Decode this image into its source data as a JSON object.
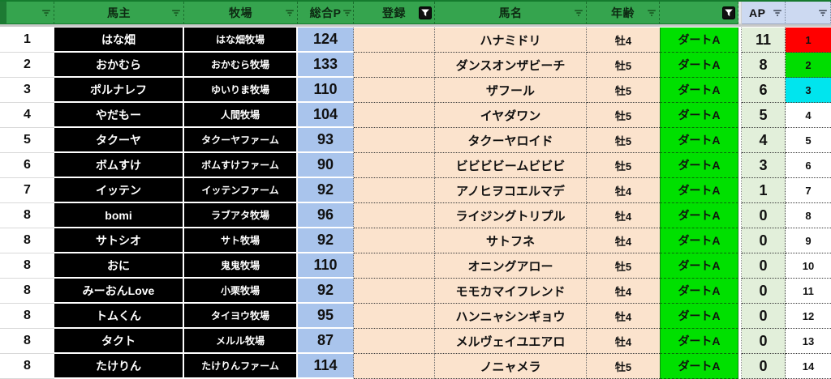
{
  "colors": {
    "header_green": "#35a44e",
    "header_blue": "#ccd9f1",
    "cell_black": "#000000",
    "cell_blue": "#a9c4ec",
    "cell_peach": "#fbe3cd",
    "cell_bright_green": "#00e000",
    "cell_ap_green": "#e2efda",
    "rank1_red": "#ff0000",
    "rank2_green": "#00dd00",
    "rank3_cyan": "#00e5ee"
  },
  "table": {
    "columns": [
      {
        "key": "rownum",
        "label": "",
        "filter": "dropdown",
        "style": "green"
      },
      {
        "key": "owner",
        "label": "馬主",
        "filter": "dropdown",
        "style": "green"
      },
      {
        "key": "farm",
        "label": "牧場",
        "filter": "dropdown",
        "style": "green"
      },
      {
        "key": "totalp",
        "label": "総合P",
        "filter": "dropdown",
        "style": "green"
      },
      {
        "key": "entry",
        "label": "登録",
        "filter": "funnel",
        "style": "green"
      },
      {
        "key": "horse",
        "label": "馬名",
        "filter": "dropdown",
        "style": "green"
      },
      {
        "key": "age",
        "label": "年齢",
        "filter": "dropdown",
        "style": "green"
      },
      {
        "key": "class",
        "label": "",
        "filter": "funnel",
        "style": "green"
      },
      {
        "key": "gap",
        "label": "",
        "filter": null,
        "style": "gap"
      },
      {
        "key": "ap",
        "label": "AP",
        "filter": "dropdown",
        "style": "blue"
      },
      {
        "key": "rank",
        "label": "",
        "filter": "dropdown",
        "style": "blue"
      }
    ],
    "rows": [
      {
        "no": "1",
        "owner": "はな畑",
        "farm": "はな畑牧場",
        "totalp": "124",
        "entry": "",
        "horse": "ハナミドリ",
        "age": "牡4",
        "class": "ダートA",
        "ap": "11",
        "rank": "1",
        "rank_bg": "#ff0000"
      },
      {
        "no": "2",
        "owner": "おかむら",
        "farm": "おかむら牧場",
        "totalp": "133",
        "entry": "",
        "horse": "ダンスオンザビーチ",
        "age": "牡5",
        "class": "ダートA",
        "ap": "8",
        "rank": "2",
        "rank_bg": "#00dd00"
      },
      {
        "no": "3",
        "owner": "ポルナレフ",
        "farm": "ゆいりま牧場",
        "totalp": "110",
        "entry": "",
        "horse": "ザフール",
        "age": "牡5",
        "class": "ダートA",
        "ap": "6",
        "rank": "3",
        "rank_bg": "#00e5ee"
      },
      {
        "no": "4",
        "owner": "やだもー",
        "farm": "人間牧場",
        "totalp": "104",
        "entry": "",
        "horse": "イヤダワン",
        "age": "牡5",
        "class": "ダートA",
        "ap": "5",
        "rank": "4",
        "rank_bg": "#ffffff"
      },
      {
        "no": "5",
        "owner": "タクーヤ",
        "farm": "タクーヤファーム",
        "totalp": "93",
        "entry": "",
        "horse": "タクーヤロイド",
        "age": "牡5",
        "class": "ダートA",
        "ap": "4",
        "rank": "5",
        "rank_bg": "#ffffff"
      },
      {
        "no": "6",
        "owner": "ボムすけ",
        "farm": "ボムすけファーム",
        "totalp": "90",
        "entry": "",
        "horse": "ビビビビームビビビ",
        "age": "牡5",
        "class": "ダートA",
        "ap": "3",
        "rank": "6",
        "rank_bg": "#ffffff"
      },
      {
        "no": "7",
        "owner": "イッテン",
        "farm": "イッテンファーム",
        "totalp": "92",
        "entry": "",
        "horse": "アノヒヲコエルマデ",
        "age": "牡4",
        "class": "ダートA",
        "ap": "1",
        "rank": "7",
        "rank_bg": "#ffffff"
      },
      {
        "no": "8",
        "owner": "bomi",
        "farm": "ラブアタ牧場",
        "totalp": "96",
        "entry": "",
        "horse": "ライジングトリプル",
        "age": "牡4",
        "class": "ダートA",
        "ap": "0",
        "rank": "8",
        "rank_bg": "#ffffff"
      },
      {
        "no": "8",
        "owner": "サトシオ",
        "farm": "サト牧場",
        "totalp": "92",
        "entry": "",
        "horse": "サトフネ",
        "age": "牡4",
        "class": "ダートA",
        "ap": "0",
        "rank": "9",
        "rank_bg": "#ffffff"
      },
      {
        "no": "8",
        "owner": "おに",
        "farm": "鬼鬼牧場",
        "totalp": "110",
        "entry": "",
        "horse": "オニングアロー",
        "age": "牡5",
        "class": "ダートA",
        "ap": "0",
        "rank": "10",
        "rank_bg": "#ffffff"
      },
      {
        "no": "8",
        "owner": "みーおんLove",
        "farm": "小栗牧場",
        "totalp": "92",
        "entry": "",
        "horse": "モモカマイフレンド",
        "age": "牡4",
        "class": "ダートA",
        "ap": "0",
        "rank": "11",
        "rank_bg": "#ffffff"
      },
      {
        "no": "8",
        "owner": "トムくん",
        "farm": "タイヨウ牧場",
        "totalp": "95",
        "entry": "",
        "horse": "ハンニャシンギョウ",
        "age": "牡4",
        "class": "ダートA",
        "ap": "0",
        "rank": "12",
        "rank_bg": "#ffffff"
      },
      {
        "no": "8",
        "owner": "タクト",
        "farm": "メルル牧場",
        "totalp": "87",
        "entry": "",
        "horse": "メルヴェイユエアロ",
        "age": "牡4",
        "class": "ダートA",
        "ap": "0",
        "rank": "13",
        "rank_bg": "#ffffff"
      },
      {
        "no": "8",
        "owner": "たけりん",
        "farm": "たけりんファーム",
        "totalp": "114",
        "entry": "",
        "horse": "ノニャメラ",
        "age": "牡5",
        "class": "ダートA",
        "ap": "0",
        "rank": "14",
        "rank_bg": "#ffffff"
      }
    ]
  }
}
